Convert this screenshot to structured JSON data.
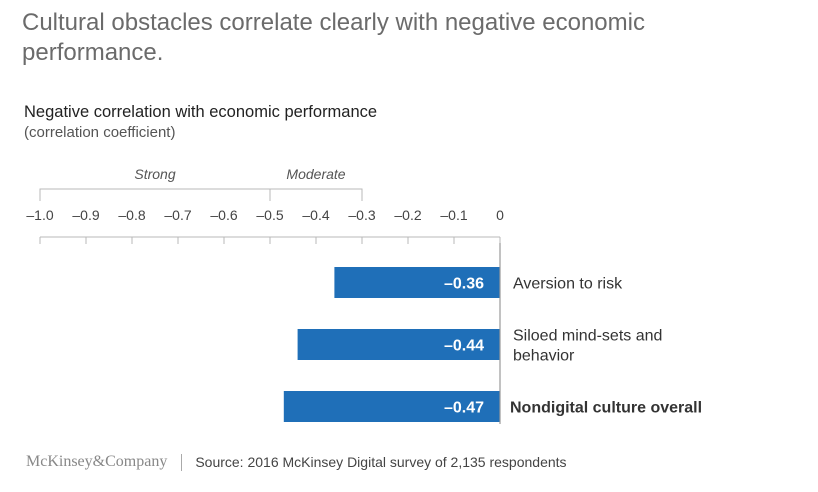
{
  "headline": "Cultural obstacles correlate clearly with negative economic performance.",
  "footer": {
    "logo": "McKinsey&Company",
    "source": "Source: 2016 McKinsey Digital survey of 2,135 respondents"
  },
  "colors": {
    "bar": "#1f6fb8",
    "bar_label": "#ffffff",
    "axis": "#b9b9b9",
    "text": "#444444"
  },
  "chart_data": {
    "type": "bar",
    "orientation": "horizontal",
    "title": "Negative correlation with economic performance",
    "unit": "(correlation coefficient)",
    "xlim": [
      -1.0,
      0
    ],
    "ticks": [
      -1.0,
      -0.9,
      -0.8,
      -0.7,
      -0.6,
      -0.5,
      -0.4,
      -0.3,
      -0.2,
      -0.1,
      0
    ],
    "tick_labels": [
      "–1.0",
      "–0.9",
      "–0.8",
      "–0.7",
      "–0.6",
      "–0.5",
      "–0.4",
      "–0.3",
      "–0.2",
      "–0.1",
      "0"
    ],
    "ranges": [
      {
        "label": "Strong",
        "from": -1.0,
        "to": -0.5
      },
      {
        "label": "Moderate",
        "from": -0.5,
        "to": -0.3
      }
    ],
    "bars": [
      {
        "category": "Aversion to risk",
        "value": -0.36,
        "value_label": "–0.36"
      },
      {
        "category": "Siloed mind-sets and behavior",
        "category_lines": [
          "Siloed mind-sets and",
          "behavior"
        ],
        "value": -0.44,
        "value_label": "–0.44"
      },
      {
        "category": "Nondigital culture overall",
        "value": -0.47,
        "value_label": "–0.47",
        "emphasis": true
      }
    ],
    "grid": false
  }
}
